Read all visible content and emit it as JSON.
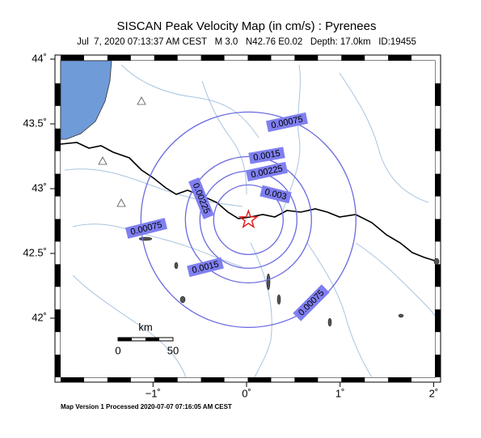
{
  "title": "SISCAN Peak Velocity Map (in cm/s) : Pyrenees",
  "subtitle": "Jul  7, 2020 07:13:37 AM CEST   M 3.0   N42.76 E0.02   Depth: 17.0km   ID:19455",
  "axes": {
    "lat_ticks": [
      {
        "value": 44,
        "label": "44˚"
      },
      {
        "value": 43.5,
        "label": "43.5˚"
      },
      {
        "value": 43,
        "label": "43˚"
      },
      {
        "value": 42.5,
        "label": "42.5˚"
      },
      {
        "value": 42,
        "label": "42˚"
      }
    ],
    "lon_ticks": [
      {
        "value": -1,
        "label": "−1˚"
      },
      {
        "value": 0,
        "label": "0˚"
      },
      {
        "value": 1,
        "label": "1˚"
      },
      {
        "value": 2,
        "label": "2˚"
      }
    ]
  },
  "contours": [
    0.00075,
    0.0015,
    0.00225,
    0.003
  ],
  "scale_bar": {
    "unit": "km",
    "start": "0",
    "end": "50"
  },
  "footer": "Map Version 1 Processed 2020-07-07 07:16:05 AM CEST"
}
